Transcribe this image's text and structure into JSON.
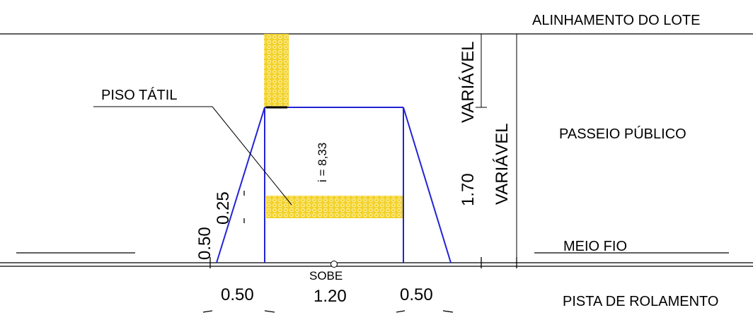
{
  "labels": {
    "alinhamento": "ALINHAMENTO DO LOTE",
    "passeio": "PASSEIO PÚBLICO",
    "meio_fio": "MEIO FIO",
    "pista": "PISTA DE ROLAMENTO",
    "piso_tatil": "PISO TÁTIL",
    "sobe": "SOBE",
    "inclinacao": "i = 8,33"
  },
  "dimensions": {
    "variavel_upper": "VARIÁVEL",
    "variavel_lower": "VARIÁVEL",
    "height_ramp": "1.70",
    "height_curb": "0.50",
    "height_offset": "0.25",
    "width_left": "0.50",
    "width_center": "1.20",
    "width_right": "0.50"
  },
  "colors": {
    "ramp_lines": "#2323d6",
    "tactile_fill": "#f2d22b",
    "tactile_dots": "#fff4b0",
    "lines": "#000000"
  }
}
